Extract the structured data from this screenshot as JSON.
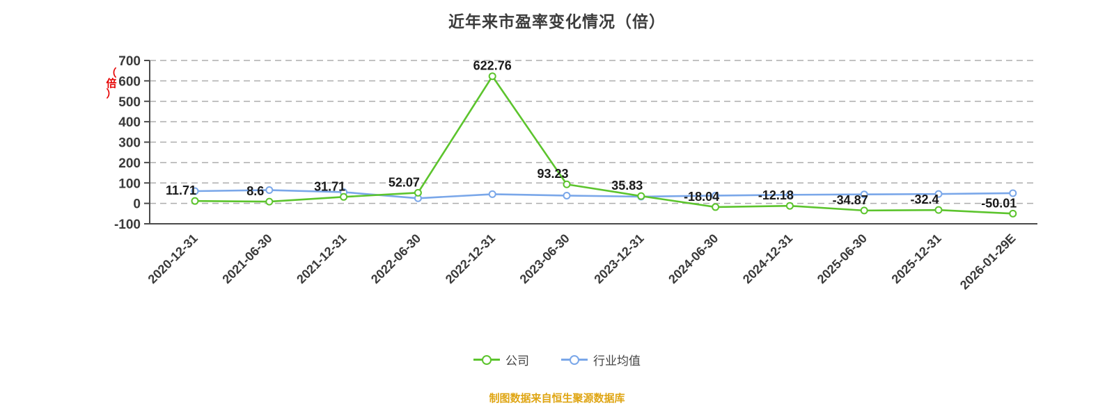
{
  "caption": "制图数据来自恒生聚源数据库",
  "legend": {
    "company_label": "公司",
    "industry_label": "行业均值"
  },
  "chart_data": {
    "type": "line",
    "title": "近年来市盈率变化情况（倍）",
    "y_unit_label": "（倍）",
    "y_unit_label_color": "#e60000",
    "categories": [
      "2020-12-31",
      "2021-06-30",
      "2021-12-31",
      "2022-06-30",
      "2022-12-31",
      "2023-06-30",
      "2023-12-31",
      "2024-06-30",
      "2024-12-31",
      "2025-06-30",
      "2025-12-31",
      "2026-01-29E"
    ],
    "series": [
      {
        "name": "公司",
        "color": "#5cc42d",
        "values": [
          11.71,
          8.6,
          31.71,
          52.07,
          622.76,
          93.23,
          35.83,
          -18.04,
          -12.18,
          -34.87,
          -32.4,
          -50.01
        ],
        "labels": [
          "11.71",
          "8.6",
          "31.71",
          "52.07",
          "622.76",
          "93.23",
          "35.83",
          "-18.04",
          "-12.18",
          "-34.87",
          "-32.4",
          "-50.01"
        ]
      },
      {
        "name": "行业均值",
        "color": "#7aa7e9",
        "values": [
          60,
          65,
          55,
          25,
          45,
          38,
          33,
          38,
          42,
          44,
          46,
          50
        ],
        "labels": []
      }
    ],
    "ylim": [
      -100,
      700
    ],
    "yticks": [
      -100,
      0,
      100,
      200,
      300,
      400,
      500,
      600,
      700
    ],
    "grid": "dashed-horizontal",
    "legend_position": "bottom"
  }
}
